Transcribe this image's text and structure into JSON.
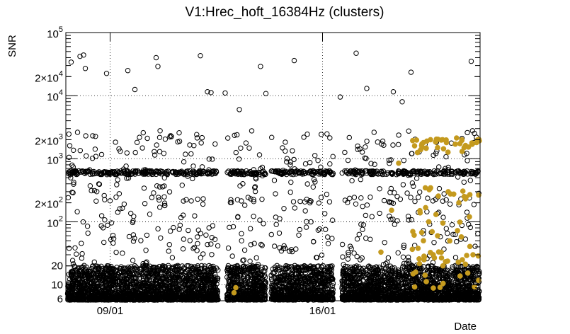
{
  "chart_data": {
    "type": "scatter",
    "title": "V1:Hrec_hoft_16384Hz (clusters)",
    "xlabel": "Date",
    "ylabel": "SNR",
    "x_unit": "days",
    "xlim": [
      0,
      23.4
    ],
    "ylim": [
      5.6,
      100000
    ],
    "y_scale": "log",
    "grid": true,
    "x_ticks": [
      {
        "value": 2.5,
        "label": "09/01"
      },
      {
        "value": 14.5,
        "label": "16/01"
      }
    ],
    "y_ticks": [
      {
        "value": 6,
        "label": "6",
        "major": false
      },
      {
        "value": 10,
        "label": "10",
        "major": true
      },
      {
        "value": 20,
        "label": "20",
        "major": false
      },
      {
        "value": 100,
        "label": "10",
        "sup": "2",
        "major": true
      },
      {
        "value": 200,
        "label": "2×10",
        "sup": "2",
        "major": false
      },
      {
        "value": 1000,
        "label": "10",
        "sup": "3",
        "major": true
      },
      {
        "value": 2000,
        "label": "2×10",
        "sup": "3",
        "major": false
      },
      {
        "value": 10000,
        "label": "10",
        "sup": "4",
        "major": true
      },
      {
        "value": 20000,
        "label": "2×10",
        "sup": "4",
        "major": false
      },
      {
        "value": 100000,
        "label": "10",
        "sup": "5",
        "major": true
      }
    ],
    "series": [
      {
        "marker": "open-circle",
        "color": "#000000",
        "segments": [
          [
            0.1,
            8.6
          ],
          [
            9.1,
            10.8
          ],
          [
            10.6,
            11.3
          ],
          [
            11.6,
            12.7
          ],
          [
            12.7,
            14.0
          ],
          [
            14.0,
            15.1
          ],
          [
            15.6,
            18.9
          ],
          [
            19.0,
            23.4
          ]
        ],
        "band_level_snr": 600,
        "notable_points": [
          {
            "x": 0.3,
            "y": 34000
          },
          {
            "x": 0.8,
            "y": 42000
          },
          {
            "x": 1.0,
            "y": 44000
          },
          {
            "x": 1.1,
            "y": 27000
          },
          {
            "x": 2.3,
            "y": 22500
          },
          {
            "x": 3.5,
            "y": 25000
          },
          {
            "x": 3.9,
            "y": 12500
          },
          {
            "x": 5.1,
            "y": 40000
          },
          {
            "x": 5.2,
            "y": 29000
          },
          {
            "x": 7.6,
            "y": 43000
          },
          {
            "x": 8.0,
            "y": 11500
          },
          {
            "x": 8.2,
            "y": 11200
          },
          {
            "x": 9.0,
            "y": 11000
          },
          {
            "x": 9.8,
            "y": 6000
          },
          {
            "x": 11.0,
            "y": 29000
          },
          {
            "x": 11.3,
            "y": 10800
          },
          {
            "x": 12.9,
            "y": 36000
          },
          {
            "x": 15.5,
            "y": 9500
          },
          {
            "x": 16.4,
            "y": 47000
          },
          {
            "x": 17.0,
            "y": 13000
          },
          {
            "x": 18.5,
            "y": 11500
          },
          {
            "x": 19.0,
            "y": 8000
          },
          {
            "x": 19.5,
            "y": 23500
          },
          {
            "x": 22.9,
            "y": 35000
          }
        ]
      },
      {
        "marker": "filled-circle",
        "color": "#c49a1e",
        "segments": [
          [
            9.4,
            9.7
          ],
          [
            17.8,
            17.9
          ],
          [
            18.8,
            18.9
          ],
          [
            19.5,
            23.4
          ]
        ],
        "notable_points": [
          {
            "x": 9.5,
            "y": 7.5
          },
          {
            "x": 9.6,
            "y": 9.0
          },
          {
            "x": 17.8,
            "y": 33
          },
          {
            "x": 18.8,
            "y": 850
          },
          {
            "x": 18.4,
            "y": 152
          },
          {
            "x": 19.7,
            "y": 1600
          },
          {
            "x": 20.2,
            "y": 1800
          },
          {
            "x": 20.6,
            "y": 2000
          },
          {
            "x": 21.0,
            "y": 1500
          },
          {
            "x": 21.5,
            "y": 1800
          },
          {
            "x": 22.0,
            "y": 1700
          },
          {
            "x": 22.5,
            "y": 1500
          },
          {
            "x": 23.2,
            "y": 1800
          },
          {
            "x": 20.0,
            "y": 150
          },
          {
            "x": 20.5,
            "y": 100
          },
          {
            "x": 21.0,
            "y": 60
          },
          {
            "x": 21.6,
            "y": 300
          },
          {
            "x": 22.2,
            "y": 200
          },
          {
            "x": 22.8,
            "y": 120
          },
          {
            "x": 23.0,
            "y": 30
          },
          {
            "x": 22.4,
            "y": 25
          },
          {
            "x": 21.3,
            "y": 20
          },
          {
            "x": 20.2,
            "y": 50
          },
          {
            "x": 19.6,
            "y": 70
          }
        ]
      }
    ]
  }
}
